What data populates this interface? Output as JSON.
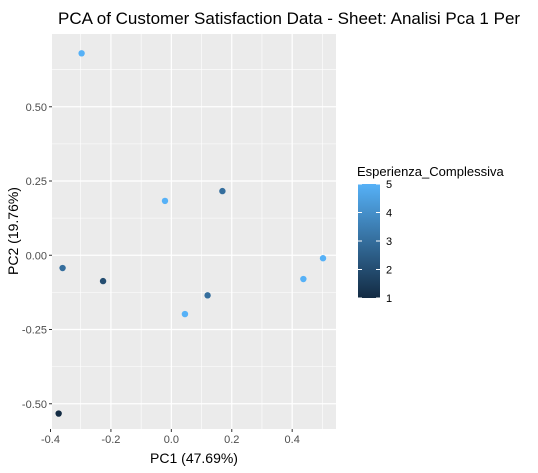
{
  "chart_data": {
    "type": "scatter",
    "title": "PCA of Customer Satisfaction Data - Sheet: Analisi Pca 1 Per",
    "xlabel": "PC1 (47.69%)",
    "ylabel": "PC2 (19.76%)",
    "xlim": [
      -0.395,
      0.545
    ],
    "ylim": [
      -0.585,
      0.745
    ],
    "x_ticks": [
      -0.4,
      -0.2,
      0.0,
      0.2,
      0.4
    ],
    "x_tick_labels": [
      "-0.4",
      "-0.2",
      "0.0",
      "0.2",
      "0.4"
    ],
    "y_ticks": [
      -0.5,
      -0.25,
      0.0,
      0.25,
      0.5
    ],
    "y_tick_labels": [
      "-0.50",
      "-0.25",
      "0.00",
      "0.25",
      "0.50"
    ],
    "grid": true,
    "color_scale": {
      "name": "Esperienza_Complessiva",
      "min": 1,
      "max": 5,
      "low_color": "#132B43",
      "high_color": "#56B1F7",
      "ticks": [
        1,
        2,
        3,
        4,
        5
      ],
      "tick_labels": [
        "1",
        "2",
        "3",
        "4",
        "5"
      ],
      "legend_position": "right"
    },
    "points": [
      {
        "x": -0.297,
        "y": 0.68,
        "value": 5
      },
      {
        "x": -0.021,
        "y": 0.183,
        "value": 5
      },
      {
        "x": 0.169,
        "y": 0.216,
        "value": 3
      },
      {
        "x": 0.502,
        "y": -0.01,
        "value": 5
      },
      {
        "x": 0.437,
        "y": -0.08,
        "value": 5
      },
      {
        "x": -0.36,
        "y": -0.043,
        "value": 3
      },
      {
        "x": -0.226,
        "y": -0.087,
        "value": 2
      },
      {
        "x": 0.12,
        "y": -0.135,
        "value": 3
      },
      {
        "x": 0.045,
        "y": -0.198,
        "value": 5
      },
      {
        "x": -0.373,
        "y": -0.533,
        "value": 1
      }
    ]
  }
}
